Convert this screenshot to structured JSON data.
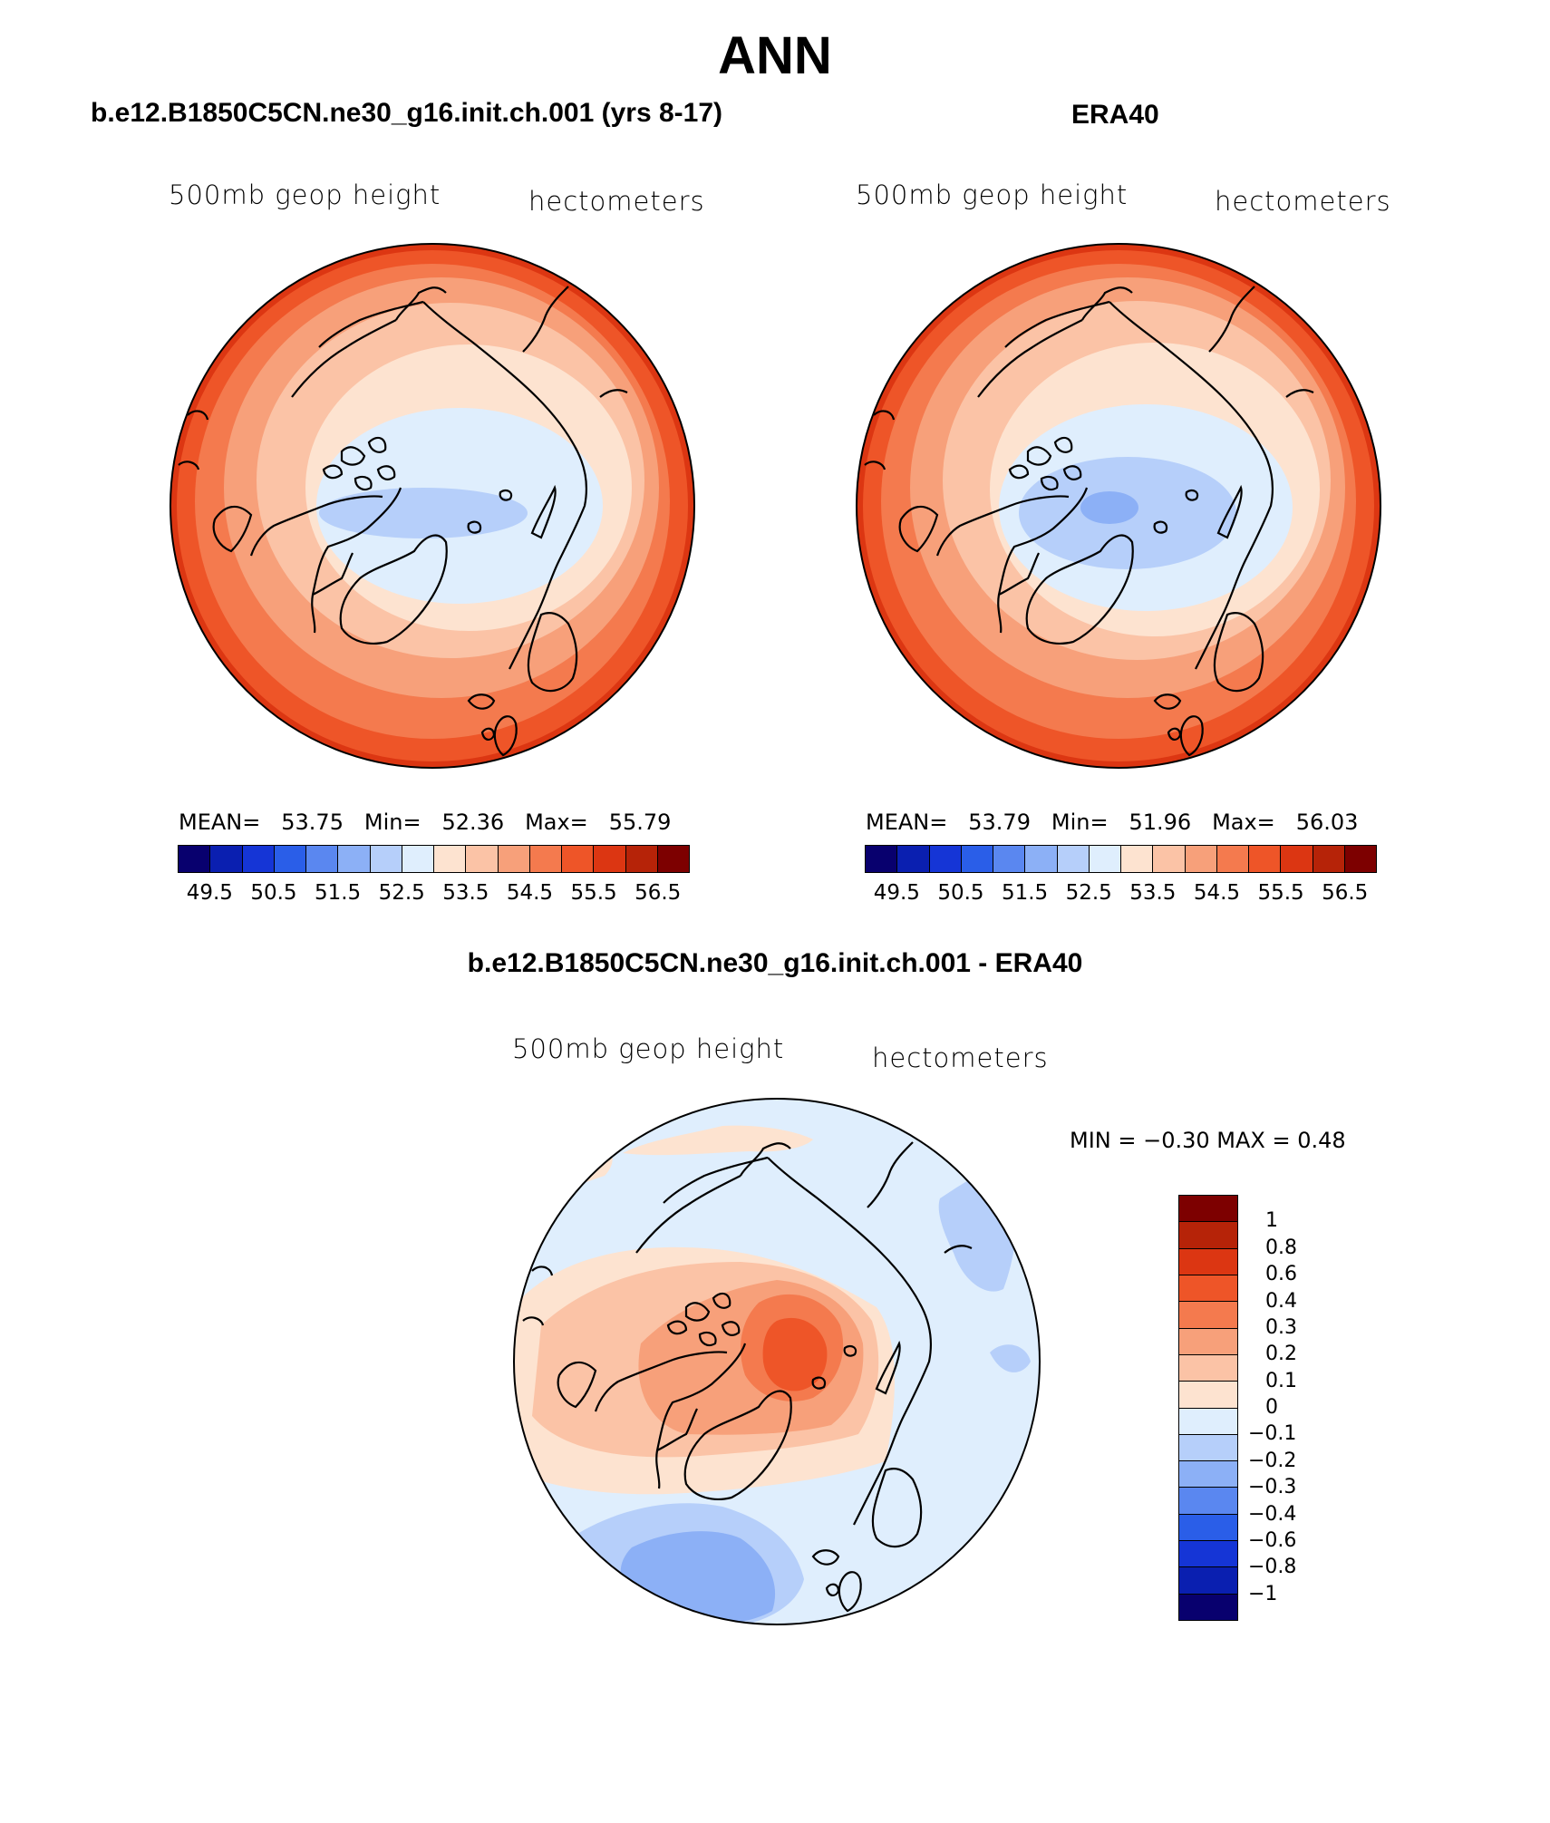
{
  "title": "ANN",
  "panels": [
    {
      "title": "b.e12.B1850C5CN.ne30_g16.init.ch.001 (yrs 8-17)",
      "variable": "500mb geop height",
      "units": "hectometers",
      "stats": {
        "mean_label": "MEAN=",
        "mean": "53.75",
        "min_label": "Min=",
        "min": "52.36",
        "max_label": "Max=",
        "max": "55.79"
      }
    },
    {
      "title": "ERA40",
      "variable": "500mb geop height",
      "units": "hectometers",
      "stats": {
        "mean_label": "MEAN=",
        "mean": "53.79",
        "min_label": "Min=",
        "min": "51.96",
        "max_label": "Max=",
        "max": "56.03"
      }
    }
  ],
  "abs_colorbar": {
    "colors": [
      "#08006e",
      "#0a1fb0",
      "#1535d6",
      "#2a5ee8",
      "#5a87f0",
      "#8cb0f6",
      "#b6cffa",
      "#dfeefd",
      "#fde3d0",
      "#fbc3a6",
      "#f7a07a",
      "#f47a4e",
      "#ee5528",
      "#dc3612",
      "#b62308",
      "#7d0000"
    ],
    "tick_labels": [
      "49.5",
      "50.5",
      "51.5",
      "52.5",
      "53.5",
      "54.5",
      "55.5",
      "56.5"
    ]
  },
  "difference": {
    "title": "b.e12.B1850C5CN.ne30_g16.init.ch.001 - ERA40",
    "variable": "500mb geop height",
    "units": "hectometers",
    "stats_text": "MIN =  −0.30 MAX =    0.48",
    "colors_top_to_bottom": [
      "#7d0000",
      "#b62308",
      "#dc3612",
      "#ee5528",
      "#f47a4e",
      "#f7a07a",
      "#fbc3a6",
      "#fde3d0",
      "#dfeefd",
      "#b6cffa",
      "#8cb0f6",
      "#5a87f0",
      "#2a5ee8",
      "#1535d6",
      "#0a1fb0",
      "#08006e"
    ],
    "tick_labels_top_to_bottom": [
      "1",
      "0.8",
      "0.6",
      "0.4",
      "0.3",
      "0.2",
      "0.1",
      "0",
      "−0.1",
      "−0.2",
      "−0.3",
      "−0.4",
      "−0.6",
      "−0.8",
      "−1"
    ]
  }
}
